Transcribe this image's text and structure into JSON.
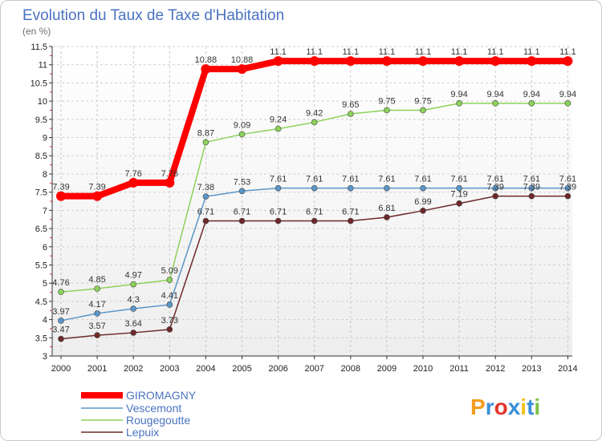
{
  "chart_data": {
    "type": "line",
    "title": "Evolution du Taux de Taxe d'Habitation",
    "subtitle": "(en %)",
    "xlabel": "",
    "ylabel": "(en %)",
    "ylim": [
      3,
      11.5
    ],
    "y_ticks": [
      "3",
      "3.5",
      "4",
      "4.5",
      "5",
      "5.5",
      "6",
      "6.5",
      "7",
      "7.5",
      "8",
      "8.5",
      "9",
      "9.5",
      "10",
      "10.5",
      "11",
      "11.5"
    ],
    "categories": [
      "2000",
      "2001",
      "2002",
      "2003",
      "2004",
      "2005",
      "2006",
      "2007",
      "2008",
      "2009",
      "2010",
      "2011",
      "2012",
      "2013",
      "2014"
    ],
    "series": [
      {
        "name": "GIROMAGNY",
        "color": "#ff0000",
        "values": [
          7.39,
          7.39,
          7.76,
          7.76,
          10.88,
          10.88,
          11.1,
          11.1,
          11.1,
          11.1,
          11.1,
          11.1,
          11.1,
          11.1,
          11.1
        ]
      },
      {
        "name": "Vescemont",
        "color": "#5a96c8",
        "values": [
          3.97,
          4.17,
          4.3,
          4.41,
          7.38,
          7.53,
          7.61,
          7.61,
          7.61,
          7.61,
          7.61,
          7.61,
          7.61,
          7.61,
          7.61
        ]
      },
      {
        "name": "Rougegoutte",
        "color": "#8cd25a",
        "values": [
          4.76,
          4.85,
          4.97,
          5.09,
          8.87,
          9.09,
          9.24,
          9.42,
          9.65,
          9.75,
          9.75,
          9.94,
          9.94,
          9.94,
          9.94
        ]
      },
      {
        "name": "Lepuix",
        "color": "#6e2828",
        "values": [
          3.47,
          3.57,
          3.64,
          3.73,
          6.71,
          6.71,
          6.71,
          6.71,
          6.71,
          6.81,
          6.99,
          7.19,
          7.39,
          7.39,
          7.39
        ]
      }
    ],
    "legend_position": "bottom-left"
  },
  "logo": {
    "text": "Proxiti",
    "letters": [
      "P",
      "r",
      "o",
      "x",
      "i",
      "t",
      "i"
    ],
    "colors": [
      "#f39c1e",
      "#3a8fd8",
      "#e4342a",
      "#3a8fd8",
      "#f5c21b",
      "#3a8fd8",
      "#7cc242"
    ]
  }
}
